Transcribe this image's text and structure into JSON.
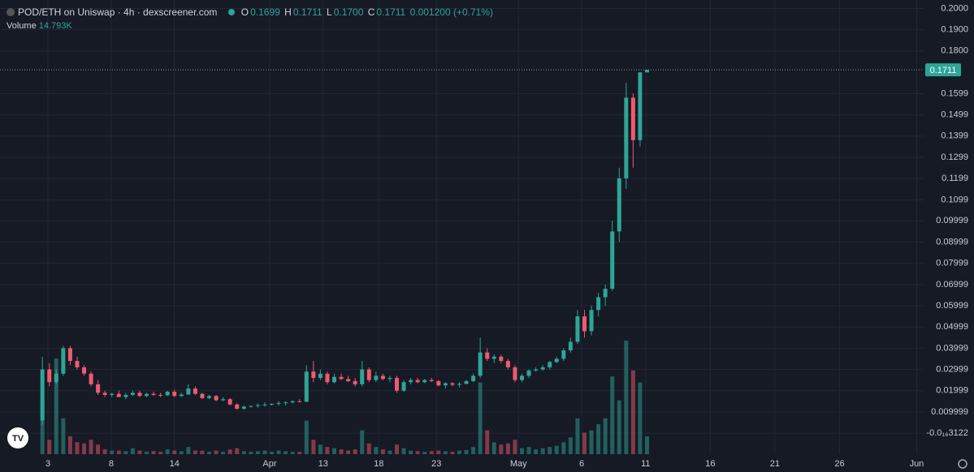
{
  "chart_data": {
    "type": "candlestick",
    "title": "POD/ETH on Uniswap · 4h · dexscreener.com",
    "legend": {
      "open_label": "O",
      "open": "0.1699",
      "high_label": "H",
      "high": "0.1711",
      "low_label": "L",
      "low": "0.1700",
      "close_label": "C",
      "close": "0.1711",
      "change": "0.001200 (+0.71%)"
    },
    "volume_title": "Volume",
    "volume_value_label": "14.793K",
    "last_price": 0.1711,
    "up_color": "#2ea597",
    "down_color": "#ef5a6f",
    "grid": true,
    "x": [
      0,
      1,
      2,
      3,
      4,
      5,
      6,
      7,
      8,
      9,
      10,
      11,
      12,
      13,
      14,
      15,
      16,
      17,
      18,
      19,
      20,
      21,
      22,
      23,
      24,
      25,
      26,
      27,
      28,
      29,
      30,
      31,
      32,
      33,
      34,
      35,
      36,
      37,
      38,
      39,
      40,
      41,
      42,
      43,
      44,
      45,
      46,
      47,
      48,
      49,
      50,
      51,
      52,
      53,
      54,
      55,
      56,
      57,
      58,
      59,
      60,
      61,
      62,
      63,
      64,
      65,
      66,
      67,
      68,
      69,
      70,
      71,
      72,
      73,
      74,
      75,
      76,
      77,
      78,
      79,
      80,
      81,
      82,
      83,
      84,
      85,
      86,
      87
    ],
    "open": [
      0.006,
      0.03,
      0.024,
      0.028,
      0.04,
      0.034,
      0.031,
      0.028,
      0.023,
      0.019,
      0.018,
      0.0185,
      0.017,
      0.018,
      0.019,
      0.0175,
      0.0185,
      0.018,
      0.0178,
      0.0195,
      0.0175,
      0.0182,
      0.021,
      0.0185,
      0.0165,
      0.0175,
      0.0155,
      0.016,
      0.0135,
      0.0115,
      0.0125,
      0.0128,
      0.0132,
      0.0135,
      0.0138,
      0.0142,
      0.0145,
      0.015,
      0.0148,
      0.029,
      0.026,
      0.028,
      0.024,
      0.0265,
      0.0255,
      0.0245,
      0.023,
      0.03,
      0.025,
      0.027,
      0.0255,
      0.026,
      0.02,
      0.024,
      0.025,
      0.024,
      0.025,
      0.0245,
      0.0225,
      0.0235,
      0.0228,
      0.0232,
      0.0245,
      0.027,
      0.038,
      0.035,
      0.036,
      0.034,
      0.031,
      0.025,
      0.027,
      0.0295,
      0.03,
      0.031,
      0.0335,
      0.035,
      0.039,
      0.043,
      0.055,
      0.048,
      0.058,
      0.064,
      0.068,
      0.095,
      0.12,
      0.158,
      0.138,
      0.1699
    ],
    "high": [
      0.036,
      0.033,
      0.03,
      0.041,
      0.041,
      0.036,
      0.032,
      0.029,
      0.025,
      0.02,
      0.019,
      0.02,
      0.019,
      0.02,
      0.02,
      0.019,
      0.0195,
      0.019,
      0.02,
      0.0205,
      0.019,
      0.023,
      0.022,
      0.019,
      0.018,
      0.018,
      0.017,
      0.0165,
      0.014,
      0.013,
      0.013,
      0.014,
      0.0145,
      0.014,
      0.015,
      0.015,
      0.0155,
      0.016,
      0.032,
      0.034,
      0.03,
      0.029,
      0.028,
      0.028,
      0.027,
      0.026,
      0.034,
      0.031,
      0.029,
      0.028,
      0.027,
      0.027,
      0.025,
      0.026,
      0.026,
      0.0255,
      0.026,
      0.025,
      0.024,
      0.024,
      0.024,
      0.025,
      0.028,
      0.045,
      0.04,
      0.037,
      0.037,
      0.035,
      0.032,
      0.028,
      0.03,
      0.031,
      0.032,
      0.034,
      0.036,
      0.04,
      0.045,
      0.058,
      0.058,
      0.06,
      0.066,
      0.07,
      0.1,
      0.125,
      0.165,
      0.16,
      0.17,
      0.1711
    ],
    "low": [
      0.004,
      0.022,
      0.023,
      0.027,
      0.032,
      0.03,
      0.027,
      0.022,
      0.018,
      0.017,
      0.017,
      0.017,
      0.016,
      0.0175,
      0.017,
      0.017,
      0.0175,
      0.017,
      0.0175,
      0.017,
      0.017,
      0.018,
      0.018,
      0.016,
      0.016,
      0.015,
      0.015,
      0.013,
      0.011,
      0.011,
      0.012,
      0.012,
      0.0125,
      0.013,
      0.013,
      0.013,
      0.014,
      0.0145,
      0.0145,
      0.024,
      0.025,
      0.023,
      0.0235,
      0.025,
      0.024,
      0.022,
      0.022,
      0.024,
      0.024,
      0.025,
      0.024,
      0.019,
      0.0195,
      0.023,
      0.0235,
      0.0235,
      0.024,
      0.022,
      0.021,
      0.022,
      0.0215,
      0.023,
      0.024,
      0.026,
      0.034,
      0.033,
      0.033,
      0.03,
      0.024,
      0.024,
      0.026,
      0.029,
      0.0295,
      0.03,
      0.033,
      0.034,
      0.038,
      0.042,
      0.045,
      0.046,
      0.055,
      0.06,
      0.067,
      0.09,
      0.115,
      0.125,
      0.135,
      0.17
    ],
    "close": [
      0.03,
      0.024,
      0.028,
      0.04,
      0.034,
      0.031,
      0.028,
      0.023,
      0.019,
      0.018,
      0.0185,
      0.017,
      0.018,
      0.019,
      0.0175,
      0.0185,
      0.018,
      0.0178,
      0.0195,
      0.0175,
      0.0182,
      0.021,
      0.0185,
      0.0165,
      0.0175,
      0.0155,
      0.016,
      0.0135,
      0.0115,
      0.0125,
      0.0128,
      0.0132,
      0.0135,
      0.0138,
      0.0142,
      0.0145,
      0.015,
      0.0148,
      0.029,
      0.026,
      0.028,
      0.024,
      0.0265,
      0.0255,
      0.0245,
      0.023,
      0.03,
      0.025,
      0.027,
      0.0255,
      0.026,
      0.02,
      0.024,
      0.025,
      0.024,
      0.025,
      0.0245,
      0.0225,
      0.0235,
      0.0228,
      0.0232,
      0.0245,
      0.027,
      0.038,
      0.035,
      0.036,
      0.034,
      0.031,
      0.025,
      0.027,
      0.0295,
      0.03,
      0.031,
      0.0335,
      0.035,
      0.039,
      0.043,
      0.055,
      0.048,
      0.058,
      0.064,
      0.068,
      0.095,
      0.12,
      0.158,
      0.138,
      0.1699,
      0.1711
    ],
    "volume": [
      45000,
      12000,
      80000,
      30000,
      15000,
      10000,
      9000,
      12000,
      8000,
      4000,
      3000,
      3000,
      2500,
      5000,
      3000,
      2000,
      2500,
      2000,
      4000,
      3000,
      2500,
      6000,
      3000,
      3000,
      2000,
      3000,
      2000,
      4000,
      5000,
      2500,
      2000,
      2500,
      3000,
      2000,
      3000,
      2500,
      2000,
      2000,
      28000,
      12000,
      8000,
      6000,
      5000,
      4000,
      3000,
      4000,
      20000,
      9000,
      6000,
      4000,
      3000,
      8000,
      5000,
      3000,
      2500,
      2000,
      2500,
      3000,
      2500,
      2000,
      3000,
      3500,
      6000,
      60000,
      20000,
      10000,
      8000,
      9000,
      12000,
      5000,
      6000,
      4000,
      5000,
      6000,
      7000,
      10000,
      14000,
      30000,
      18000,
      20000,
      25000,
      30000,
      65000,
      45000,
      95000,
      70000,
      60000,
      14793
    ],
    "xlim": [
      -6.1,
      126.8
    ],
    "xticks": [
      {
        "value": 0.8,
        "label": "3"
      },
      {
        "value": 9.9,
        "label": "8"
      },
      {
        "value": 19.0,
        "label": "14"
      },
      {
        "value": 32.7,
        "label": "Apr"
      },
      {
        "value": 40.4,
        "label": "13"
      },
      {
        "value": 48.4,
        "label": "18"
      },
      {
        "value": 56.7,
        "label": "23"
      },
      {
        "value": 68.5,
        "label": "May"
      },
      {
        "value": 77.6,
        "label": "6"
      },
      {
        "value": 86.8,
        "label": "11"
      },
      {
        "value": 96.1,
        "label": "16"
      },
      {
        "value": 105.4,
        "label": "21"
      },
      {
        "value": 114.7,
        "label": "26"
      },
      {
        "value": 125.8,
        "label": "Jun"
      }
    ],
    "ylim": [
      -0.0099,
      0.204
    ],
    "yticks": [
      {
        "value": 0.2,
        "label": "0.2000"
      },
      {
        "value": 0.19,
        "label": "0.1900"
      },
      {
        "value": 0.18,
        "label": "0.1800"
      },
      0.1599,
      0.1499,
      0.1399,
      0.1299,
      0.1199,
      0.1099,
      0.09999,
      0.08999,
      0.07999,
      0.06999,
      0.05999,
      0.04999,
      0.03999,
      0.02999,
      0.01999,
      0.009999,
      {
        "value": -3.122e-17,
        "label": "-0.0₁₆3122"
      }
    ]
  }
}
